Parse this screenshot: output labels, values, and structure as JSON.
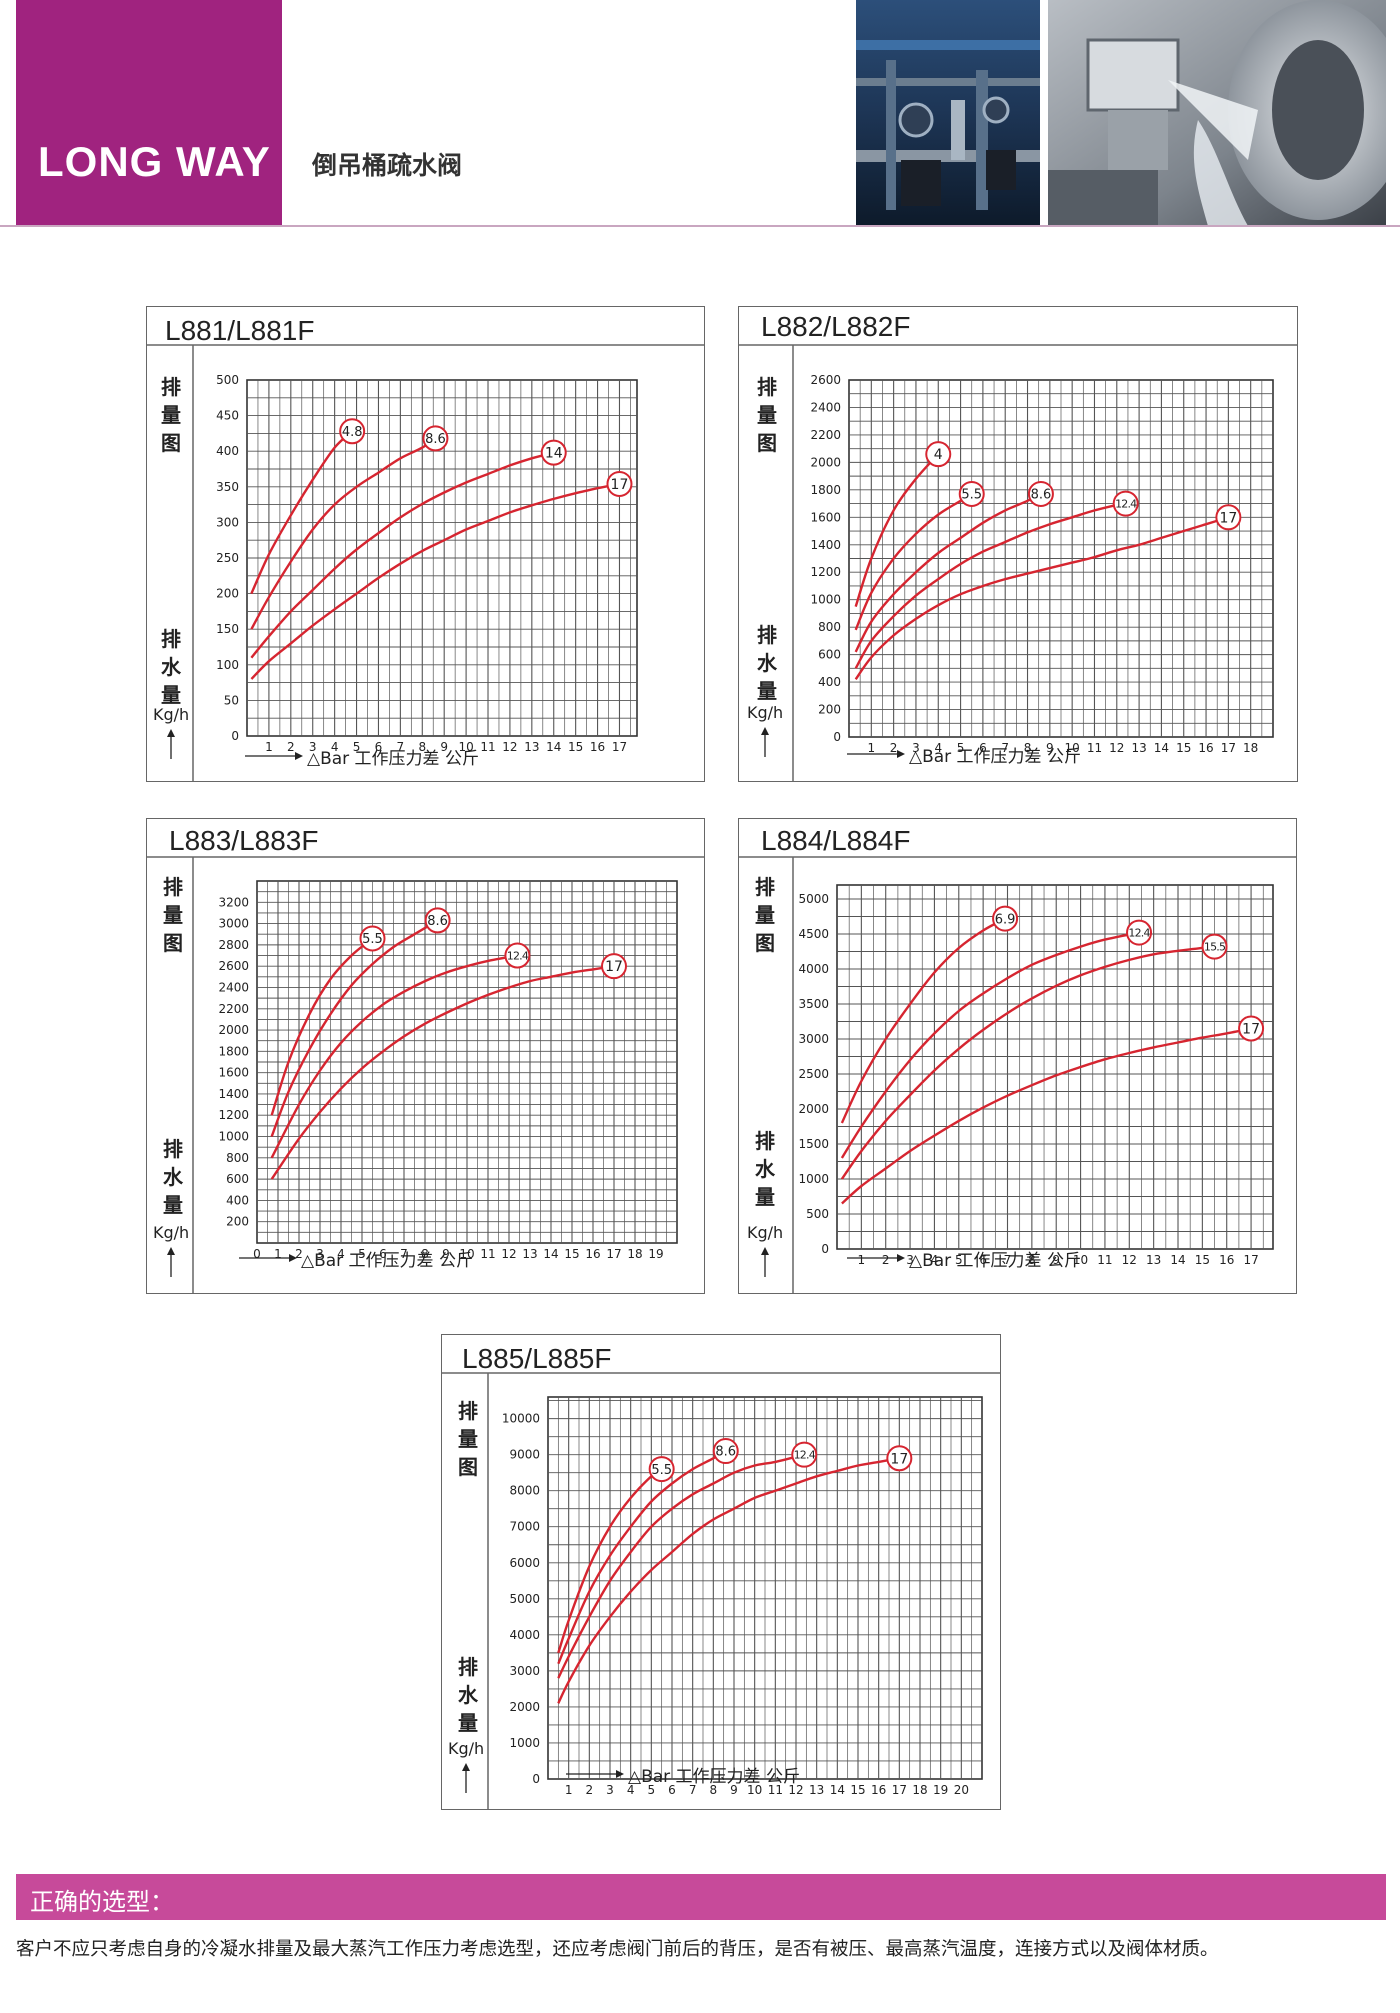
{
  "header": {
    "brand": "LONG WAY",
    "subtitle": "倒吊桶疏水阀",
    "colors": {
      "brand": "#a0237f",
      "curve": "#d62530",
      "section": "#c74a9a"
    },
    "photos": [
      "valves-in-plant",
      "cnc-machining"
    ]
  },
  "axis_text": {
    "y_top": [
      "排",
      "量",
      "图"
    ],
    "y_bottom": [
      "排",
      "水",
      "量"
    ],
    "unit": "Kg/h",
    "x_caption": "△Bar 工作压力差 公斤"
  },
  "chart_data": [
    {
      "type": "line",
      "title": "L881/L881F",
      "xlabel": "△Bar 工作压力差 公斤",
      "ylabel": "排水量 Kg/h",
      "xlim": [
        0,
        17.8
      ],
      "ylim": [
        0,
        500
      ],
      "x_ticks": [
        1,
        2,
        3,
        4,
        5,
        6,
        7,
        8,
        9,
        10,
        11,
        12,
        13,
        14,
        15,
        16,
        17
      ],
      "y_ticks": [
        0,
        50,
        100,
        150,
        200,
        250,
        300,
        350,
        400,
        450,
        500
      ],
      "series": [
        {
          "label": "4.8",
          "x": [
            0.2,
            1,
            2,
            3,
            4,
            4.8
          ],
          "y": [
            200,
            255,
            310,
            360,
            405,
            428
          ]
        },
        {
          "label": "8.6",
          "x": [
            0.2,
            1,
            2,
            3,
            4,
            5,
            6,
            7,
            8,
            8.6
          ],
          "y": [
            150,
            195,
            245,
            290,
            325,
            350,
            370,
            390,
            405,
            418
          ]
        },
        {
          "label": "14",
          "x": [
            0.2,
            1,
            2,
            3,
            4,
            5,
            6,
            7,
            8,
            9,
            10,
            11,
            12,
            13,
            14
          ],
          "y": [
            110,
            140,
            175,
            205,
            235,
            262,
            285,
            307,
            326,
            342,
            356,
            368,
            380,
            390,
            398
          ]
        },
        {
          "label": "17",
          "x": [
            0.2,
            1,
            2,
            3,
            4,
            5,
            6,
            7,
            8,
            9,
            10,
            11,
            12,
            13,
            14,
            15,
            16,
            17
          ],
          "y": [
            80,
            105,
            130,
            155,
            178,
            200,
            222,
            242,
            260,
            275,
            290,
            302,
            314,
            324,
            333,
            341,
            348,
            354
          ]
        }
      ]
    },
    {
      "type": "line",
      "title": "L882/L882F",
      "xlabel": "△Bar 工作压力差 公斤",
      "ylabel": "排水量 Kg/h",
      "xlim": [
        0,
        19
      ],
      "ylim": [
        0,
        2600
      ],
      "x_ticks": [
        1,
        2,
        3,
        4,
        5,
        6,
        7,
        8,
        9,
        10,
        11,
        12,
        13,
        14,
        15,
        16,
        17,
        18
      ],
      "y_ticks": [
        0,
        200,
        400,
        600,
        800,
        1000,
        1200,
        1400,
        1600,
        1800,
        2000,
        2200,
        2400,
        2600
      ],
      "series": [
        {
          "label": "4",
          "x": [
            0.3,
            1,
            2,
            3,
            4
          ],
          "y": [
            950,
            1300,
            1650,
            1880,
            2060
          ]
        },
        {
          "label": "5.5",
          "x": [
            0.3,
            1,
            2,
            3,
            4,
            5,
            5.5
          ],
          "y": [
            780,
            1050,
            1300,
            1480,
            1620,
            1720,
            1770
          ]
        },
        {
          "label": "8.6",
          "x": [
            0.3,
            1,
            2,
            3,
            4,
            5,
            6,
            7,
            8,
            8.6
          ],
          "y": [
            620,
            840,
            1040,
            1200,
            1340,
            1450,
            1560,
            1650,
            1720,
            1770
          ]
        },
        {
          "label": "12.4",
          "x": [
            0.3,
            1,
            2,
            3,
            4,
            5,
            6,
            7,
            8,
            9,
            10,
            11,
            12,
            12.4
          ],
          "y": [
            500,
            700,
            880,
            1030,
            1150,
            1260,
            1350,
            1420,
            1490,
            1550,
            1600,
            1650,
            1690,
            1700
          ]
        },
        {
          "label": "17",
          "x": [
            0.3,
            1,
            2,
            3,
            4,
            5,
            6,
            7,
            8,
            9,
            10,
            11,
            12,
            13,
            14,
            15,
            16,
            17
          ],
          "y": [
            420,
            580,
            740,
            860,
            960,
            1040,
            1100,
            1150,
            1190,
            1230,
            1270,
            1310,
            1360,
            1400,
            1450,
            1500,
            1550,
            1600
          ]
        }
      ]
    },
    {
      "type": "line",
      "title": "L883/L883F",
      "xlabel": "△Bar 工作压力差 公斤",
      "ylabel": "排水量 Kg/h",
      "xlim": [
        0,
        20
      ],
      "ylim": [
        0,
        3400
      ],
      "x_ticks": [
        0,
        1,
        2,
        3,
        4,
        5,
        6,
        7,
        8,
        9,
        10,
        11,
        12,
        13,
        14,
        15,
        16,
        17,
        18,
        19
      ],
      "y_ticks": [
        200,
        400,
        600,
        800,
        1000,
        1200,
        1400,
        1600,
        1800,
        2000,
        2200,
        2400,
        2600,
        2800,
        3000,
        3200
      ],
      "series": [
        {
          "label": "5.5",
          "x": [
            0.7,
            1.5,
            2.5,
            3.5,
            4.5,
            5.5
          ],
          "y": [
            1200,
            1700,
            2150,
            2480,
            2700,
            2860
          ]
        },
        {
          "label": "8.6",
          "x": [
            0.7,
            1.5,
            2.5,
            3.5,
            4.5,
            5.5,
            6.5,
            7.5,
            8.6
          ],
          "y": [
            1000,
            1420,
            1820,
            2150,
            2420,
            2620,
            2780,
            2900,
            3030
          ]
        },
        {
          "label": "12.4",
          "x": [
            0.7,
            2,
            3,
            4,
            5,
            6,
            7,
            8,
            9,
            10,
            11,
            12.4
          ],
          "y": [
            800,
            1300,
            1620,
            1880,
            2080,
            2240,
            2360,
            2460,
            2540,
            2600,
            2650,
            2700
          ]
        },
        {
          "label": "17",
          "x": [
            0.7,
            2,
            3,
            4,
            5,
            6,
            7,
            8,
            9,
            10,
            11,
            12,
            13,
            14,
            15,
            16,
            17
          ],
          "y": [
            600,
            980,
            1230,
            1450,
            1640,
            1800,
            1940,
            2060,
            2160,
            2250,
            2330,
            2400,
            2460,
            2500,
            2540,
            2570,
            2600
          ]
        }
      ]
    },
    {
      "type": "line",
      "title": "L884/L884F",
      "xlabel": "△Bar 工作压力差 公斤",
      "ylabel": "排水量 Kg/h",
      "xlim": [
        0,
        17.9
      ],
      "ylim": [
        0,
        5200
      ],
      "x_ticks": [
        1,
        2,
        3,
        4,
        5,
        6,
        7,
        8,
        9,
        10,
        11,
        12,
        13,
        14,
        15,
        16,
        17
      ],
      "y_ticks": [
        0,
        500,
        1000,
        1500,
        2000,
        2500,
        3000,
        3500,
        4000,
        4500,
        5000
      ],
      "series": [
        {
          "label": "6.9",
          "x": [
            0.2,
            1,
            2,
            3,
            4,
            5,
            6,
            6.9
          ],
          "y": [
            1800,
            2400,
            3000,
            3500,
            3950,
            4300,
            4550,
            4720
          ]
        },
        {
          "label": "12.4",
          "x": [
            0.2,
            1,
            2,
            3,
            4,
            5,
            6,
            7,
            8,
            9,
            10,
            11,
            12.4
          ],
          "y": [
            1300,
            1750,
            2250,
            2700,
            3080,
            3400,
            3650,
            3870,
            4060,
            4200,
            4320,
            4420,
            4520
          ]
        },
        {
          "label": "15.5",
          "x": [
            0.2,
            1,
            2,
            3,
            4,
            5,
            6,
            7,
            8,
            9,
            10,
            11,
            12,
            13,
            14,
            15.5
          ],
          "y": [
            1000,
            1400,
            1830,
            2200,
            2550,
            2860,
            3130,
            3370,
            3580,
            3760,
            3910,
            4030,
            4130,
            4210,
            4260,
            4320
          ]
        },
        {
          "label": "17",
          "x": [
            0.2,
            1,
            2,
            3,
            4,
            5,
            6,
            7,
            8,
            9,
            10,
            11,
            12,
            13,
            14,
            15,
            16,
            17
          ],
          "y": [
            650,
            900,
            1150,
            1400,
            1620,
            1830,
            2020,
            2190,
            2340,
            2480,
            2600,
            2710,
            2800,
            2880,
            2950,
            3020,
            3080,
            3150
          ]
        }
      ]
    },
    {
      "type": "line",
      "title": "L885/L885F",
      "xlabel": "△Bar 工作压力差 公斤",
      "ylabel": "排水量 Kg/h",
      "xlim": [
        0,
        21
      ],
      "ylim": [
        0,
        10600
      ],
      "x_ticks": [
        1,
        2,
        3,
        4,
        5,
        6,
        7,
        8,
        9,
        10,
        11,
        12,
        13,
        14,
        15,
        16,
        17,
        18,
        19,
        20
      ],
      "y_ticks": [
        0,
        1000,
        2000,
        3000,
        4000,
        5000,
        6000,
        7000,
        8000,
        9000,
        10000
      ],
      "series": [
        {
          "label": "5.5",
          "x": [
            0.5,
            1,
            2,
            3,
            4,
            5,
            5.5
          ],
          "y": [
            3500,
            4400,
            5900,
            7000,
            7800,
            8400,
            8600
          ]
        },
        {
          "label": "8.6",
          "x": [
            0.5,
            1,
            2,
            3,
            4,
            5,
            6,
            7,
            8,
            8.6
          ],
          "y": [
            3200,
            3900,
            5200,
            6200,
            7000,
            7700,
            8200,
            8600,
            8900,
            9100
          ]
        },
        {
          "label": "12.4",
          "x": [
            0.5,
            1,
            2,
            3,
            4,
            5,
            6,
            7,
            8,
            9,
            10,
            11,
            12.4
          ],
          "y": [
            2800,
            3400,
            4500,
            5500,
            6300,
            7000,
            7500,
            7900,
            8200,
            8500,
            8700,
            8800,
            9000
          ]
        },
        {
          "label": "17",
          "x": [
            0.5,
            1,
            2,
            3,
            4,
            5,
            6,
            7,
            8,
            9,
            10,
            11,
            12,
            13,
            14,
            15,
            16,
            17
          ],
          "y": [
            2100,
            2700,
            3700,
            4500,
            5200,
            5800,
            6300,
            6800,
            7200,
            7500,
            7800,
            8000,
            8200,
            8400,
            8550,
            8700,
            8800,
            8900
          ]
        }
      ]
    }
  ],
  "selection": {
    "title": "正确的选型：",
    "text": "客户不应只考虑自身的冷凝水排量及最大蒸汽工作压力考虑选型，还应考虑阀门前后的背压，是否有被压、最高蒸汽温度，连接方式以及阀体材质。"
  }
}
